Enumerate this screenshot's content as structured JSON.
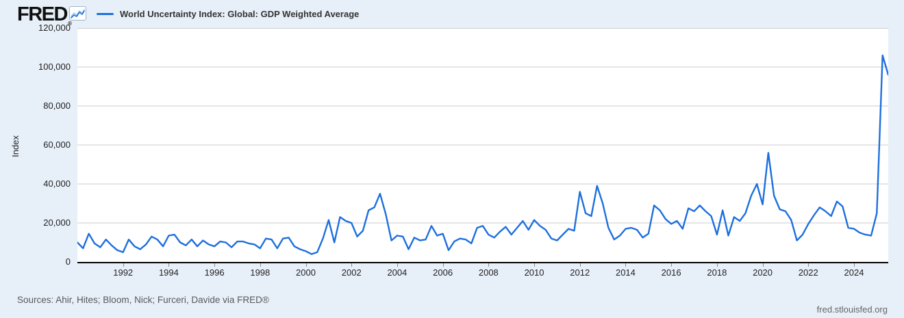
{
  "logo": {
    "text": "FRED",
    "reg": "®"
  },
  "legend": {
    "label": "World Uncertainty Index: Global: GDP Weighted Average"
  },
  "yaxis": {
    "title": "Index"
  },
  "footer": {
    "sources": "Sources: Ahir, Hites; Bloom, Nick; Furceri, Davide via FRED®",
    "site": "fred.stlouisfed.org"
  },
  "colors": {
    "background": "#e7eff8",
    "plot_background": "#ffffff",
    "line": "#1c6fdd",
    "gridline": "#cccccc",
    "axis": "#000000"
  },
  "chart_data": {
    "type": "line",
    "title": "World Uncertainty Index: Global: GDP Weighted Average",
    "ylabel": "Index",
    "xlabel": "",
    "ylim": [
      0,
      120000
    ],
    "yticks": [
      0,
      20000,
      40000,
      60000,
      80000,
      100000,
      120000
    ],
    "xticks": [
      1992,
      1994,
      1996,
      1998,
      2000,
      2002,
      2004,
      2006,
      2008,
      2010,
      2012,
      2014,
      2016,
      2018,
      2020,
      2022,
      2024
    ],
    "x_start_year": 1990,
    "x_end_year": 2025.5,
    "frequency": "quarterly",
    "grid": "horizontal",
    "legend_position": "top-left",
    "series": [
      {
        "name": "World Uncertainty Index: Global: GDP Weighted Average",
        "color": "#1c6fdd",
        "x_start": 1990.0,
        "x_step": 0.25,
        "values": [
          10000,
          7000,
          14500,
          9500,
          7500,
          11500,
          8500,
          6000,
          5000,
          11500,
          8000,
          6500,
          9000,
          13000,
          11500,
          8000,
          13500,
          14000,
          10000,
          8500,
          11500,
          8000,
          11000,
          9000,
          8000,
          10500,
          10000,
          7500,
          10500,
          10500,
          9500,
          9000,
          7000,
          12000,
          11500,
          7000,
          12000,
          12500,
          8000,
          6500,
          5500,
          4000,
          5000,
          12000,
          21500,
          10000,
          23000,
          21000,
          20000,
          13000,
          16000,
          26500,
          28000,
          35000,
          24500,
          11000,
          13500,
          13000,
          6500,
          12500,
          11000,
          11500,
          18500,
          13500,
          14500,
          6000,
          10500,
          12000,
          11500,
          9500,
          17500,
          18500,
          14000,
          12500,
          15500,
          18000,
          14000,
          17500,
          21000,
          16500,
          21500,
          18500,
          16500,
          12000,
          11000,
          14000,
          17000,
          16000,
          36000,
          25000,
          23500,
          39000,
          30000,
          17500,
          11500,
          13500,
          17000,
          17500,
          16500,
          12500,
          14500,
          29000,
          26500,
          22000,
          19500,
          21000,
          17000,
          27500,
          26000,
          29000,
          26000,
          23500,
          14000,
          26500,
          13500,
          23000,
          21000,
          25000,
          34000,
          40000,
          29500,
          56000,
          34000,
          27000,
          26000,
          21500,
          11000,
          14000,
          19500,
          24000,
          28000,
          26000,
          23500,
          31000,
          28500,
          17500,
          17000,
          15000,
          14000,
          13500,
          25000,
          106000,
          96000
        ]
      }
    ]
  }
}
